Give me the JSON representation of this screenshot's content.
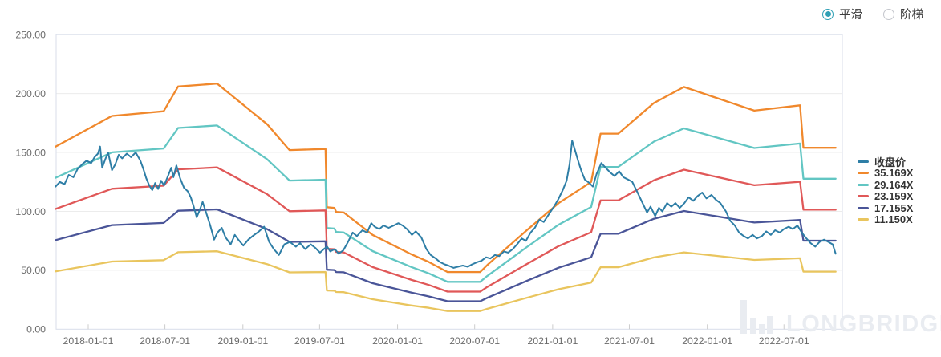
{
  "controls": {
    "accent_color": "#2fa0b5",
    "options": [
      {
        "id": "smooth",
        "label": "平滑",
        "selected": true
      },
      {
        "id": "step",
        "label": "阶梯",
        "selected": false
      }
    ]
  },
  "watermark": {
    "text": "LONGBRIDGE"
  },
  "chart_data": {
    "type": "line",
    "title": "",
    "xlabel": "",
    "ylabel": "",
    "grid": "horizontal",
    "legend_position": "right",
    "y_axis": {
      "min": 0,
      "max": 250,
      "ticks": [
        {
          "value": 0,
          "label": "0.00"
        },
        {
          "value": 50,
          "label": "50.00"
        },
        {
          "value": 100,
          "label": "100.00"
        },
        {
          "value": 150,
          "label": "150.00"
        },
        {
          "value": 200,
          "label": "200.00"
        },
        {
          "value": 250,
          "label": "250.00"
        }
      ]
    },
    "x_axis": {
      "ticks": [
        "2018-01-01",
        "2018-07-01",
        "2019-01-01",
        "2019-07-01",
        "2020-01-01",
        "2020-07-01",
        "2021-01-01",
        "2021-07-01",
        "2022-01-01",
        "2022-07-01"
      ]
    },
    "band_dates": [
      "2017-10-16",
      "2018-02-26",
      "2018-06-28",
      "2018-08-01",
      "2018-11-01",
      "2019-02-27",
      "2019-04-21",
      "2019-07-15",
      "2019-07-18",
      "2019-08-05",
      "2019-08-09",
      "2019-08-27",
      "2019-11-03",
      "2020-02-03",
      "2020-03-15",
      "2020-04-28",
      "2020-07-14",
      "2020-07-31",
      "2020-11-01",
      "2021-01-15",
      "2021-04-02",
      "2021-04-24",
      "2021-06-05",
      "2021-08-28",
      "2021-11-07",
      "2022-04-22",
      "2022-08-08",
      "2022-08-16",
      "2022-10-31"
    ],
    "series": [
      {
        "id": "band-35x",
        "name": "35.169X",
        "color": "#f0882c",
        "width": 2.3,
        "values": [
          155,
          181,
          185,
          206,
          208.5,
          174,
          152,
          153,
          103.5,
          103,
          99.5,
          99,
          80,
          63.5,
          57,
          48.5,
          48.5,
          54.5,
          84,
          107,
          125,
          166,
          166,
          192,
          205.6,
          185.5,
          190,
          154,
          154
        ]
      },
      {
        "id": "band-29x",
        "name": "29.164X",
        "color": "#62c6c3",
        "width": 2.3,
        "values": [
          128.5,
          150.1,
          153.4,
          170.8,
          172.9,
          144.3,
          126.1,
          126.9,
          85.8,
          85.4,
          82.5,
          82.1,
          66.3,
          52.7,
          47.3,
          40.2,
          40.2,
          45.2,
          69.7,
          88.7,
          103.7,
          137.7,
          137.7,
          159.2,
          170.5,
          153.8,
          157.6,
          127.7,
          127.7
        ]
      },
      {
        "id": "band-23x",
        "name": "23.159X",
        "color": "#e05858",
        "width": 2.3,
        "values": [
          102.1,
          119.2,
          121.8,
          135.7,
          137.3,
          114.6,
          100.1,
          100.8,
          68.2,
          67.8,
          65.5,
          65.2,
          52.7,
          41.8,
          37.5,
          31.9,
          31.9,
          35.9,
          55.3,
          70.5,
          82.3,
          109.3,
          109.3,
          126.4,
          135.4,
          122.2,
          125.1,
          101.4,
          101.4
        ]
      },
      {
        "id": "band-17x",
        "name": "17.155X",
        "color": "#4a5598",
        "width": 2.3,
        "values": [
          75.6,
          88.3,
          90.2,
          100.5,
          101.7,
          84.9,
          74.1,
          74.6,
          50.5,
          50.2,
          48.5,
          48.3,
          39,
          31,
          27.8,
          23.7,
          23.7,
          26.6,
          41,
          52.2,
          61,
          81,
          81,
          93.7,
          100.3,
          90.5,
          92.7,
          75.1,
          75.1
        ]
      },
      {
        "id": "band-11x",
        "name": "11.150X",
        "color": "#e9c55e",
        "width": 2.3,
        "values": [
          49.1,
          57.4,
          58.6,
          65.3,
          66.1,
          55.2,
          48.2,
          48.5,
          32.8,
          32.7,
          31.5,
          31.4,
          25.4,
          20.1,
          18.1,
          15.4,
          15.4,
          17.3,
          26.6,
          33.9,
          39.6,
          52.6,
          52.6,
          60.9,
          65.2,
          58.8,
          60.2,
          48.8,
          48.8
        ]
      },
      {
        "id": "close",
        "name": "收盘价",
        "color": "#2e7ea6",
        "width": 2,
        "points": [
          [
            "2017-10-16",
            121
          ],
          [
            "2017-10-26",
            125
          ],
          [
            "2017-11-06",
            123
          ],
          [
            "2017-11-16",
            131
          ],
          [
            "2017-11-27",
            129
          ],
          [
            "2017-12-07",
            136
          ],
          [
            "2017-12-18",
            140
          ],
          [
            "2017-12-28",
            143
          ],
          [
            "2018-01-08",
            141
          ],
          [
            "2018-01-16",
            146
          ],
          [
            "2018-01-24",
            149
          ],
          [
            "2018-01-29",
            155
          ],
          [
            "2018-02-03",
            137
          ],
          [
            "2018-02-10",
            144
          ],
          [
            "2018-02-17",
            150
          ],
          [
            "2018-02-26",
            135
          ],
          [
            "2018-03-06",
            140
          ],
          [
            "2018-03-14",
            148
          ],
          [
            "2018-03-22",
            145
          ],
          [
            "2018-04-02",
            149
          ],
          [
            "2018-04-12",
            146
          ],
          [
            "2018-04-23",
            150
          ],
          [
            "2018-05-04",
            143
          ],
          [
            "2018-05-11",
            136
          ],
          [
            "2018-05-18",
            128
          ],
          [
            "2018-05-25",
            122
          ],
          [
            "2018-06-01",
            118
          ],
          [
            "2018-06-08",
            124
          ],
          [
            "2018-06-15",
            119
          ],
          [
            "2018-06-22",
            126
          ],
          [
            "2018-06-29",
            122
          ],
          [
            "2018-07-06",
            128
          ],
          [
            "2018-07-16",
            137
          ],
          [
            "2018-07-21",
            129
          ],
          [
            "2018-07-28",
            139
          ],
          [
            "2018-08-06",
            128
          ],
          [
            "2018-08-15",
            120
          ],
          [
            "2018-08-24",
            117
          ],
          [
            "2018-08-31",
            112
          ],
          [
            "2018-09-07",
            104
          ],
          [
            "2018-09-14",
            95
          ],
          [
            "2018-09-21",
            101
          ],
          [
            "2018-09-28",
            108
          ],
          [
            "2018-10-08",
            97
          ],
          [
            "2018-10-16",
            88
          ],
          [
            "2018-10-25",
            76
          ],
          [
            "2018-11-02",
            82
          ],
          [
            "2018-11-12",
            86
          ],
          [
            "2018-11-21",
            78
          ],
          [
            "2018-12-03",
            72
          ],
          [
            "2018-12-13",
            80
          ],
          [
            "2018-12-21",
            76
          ],
          [
            "2019-01-02",
            71
          ],
          [
            "2019-01-14",
            76
          ],
          [
            "2019-01-24",
            79
          ],
          [
            "2019-02-08",
            83
          ],
          [
            "2019-02-20",
            87
          ],
          [
            "2019-03-04",
            74
          ],
          [
            "2019-03-15",
            68
          ],
          [
            "2019-03-27",
            63
          ],
          [
            "2019-04-09",
            72
          ],
          [
            "2019-04-22",
            74
          ],
          [
            "2019-05-06",
            70
          ],
          [
            "2019-05-16",
            73
          ],
          [
            "2019-05-28",
            68
          ],
          [
            "2019-06-10",
            72
          ],
          [
            "2019-06-21",
            69
          ],
          [
            "2019-07-02",
            65
          ],
          [
            "2019-07-11",
            68
          ],
          [
            "2019-07-19",
            70
          ],
          [
            "2019-07-26",
            66
          ],
          [
            "2019-08-06",
            68
          ],
          [
            "2019-08-15",
            64
          ],
          [
            "2019-08-26",
            67
          ],
          [
            "2019-09-06",
            74
          ],
          [
            "2019-09-17",
            82
          ],
          [
            "2019-09-27",
            79
          ],
          [
            "2019-10-10",
            84
          ],
          [
            "2019-10-21",
            82
          ],
          [
            "2019-10-31",
            90
          ],
          [
            "2019-11-08",
            87
          ],
          [
            "2019-11-19",
            85
          ],
          [
            "2019-11-29",
            88
          ],
          [
            "2019-12-11",
            86
          ],
          [
            "2019-12-23",
            88
          ],
          [
            "2020-01-03",
            90
          ],
          [
            "2020-01-13",
            88
          ],
          [
            "2020-01-23",
            85
          ],
          [
            "2020-02-04",
            80
          ],
          [
            "2020-02-13",
            83
          ],
          [
            "2020-02-26",
            78
          ],
          [
            "2020-03-09",
            68
          ],
          [
            "2020-03-19",
            63
          ],
          [
            "2020-03-31",
            60
          ],
          [
            "2020-04-10",
            57
          ],
          [
            "2020-04-21",
            55
          ],
          [
            "2020-04-30",
            54
          ],
          [
            "2020-05-12",
            52
          ],
          [
            "2020-05-22",
            53
          ],
          [
            "2020-06-03",
            54
          ],
          [
            "2020-06-15",
            53
          ],
          [
            "2020-06-25",
            55
          ],
          [
            "2020-07-08",
            57
          ],
          [
            "2020-07-17",
            58
          ],
          [
            "2020-07-28",
            61
          ],
          [
            "2020-08-07",
            60
          ],
          [
            "2020-08-18",
            63
          ],
          [
            "2020-08-28",
            62
          ],
          [
            "2020-09-08",
            66
          ],
          [
            "2020-09-18",
            65
          ],
          [
            "2020-09-29",
            68
          ],
          [
            "2020-10-09",
            72
          ],
          [
            "2020-10-20",
            77
          ],
          [
            "2020-10-30",
            75
          ],
          [
            "2020-11-10",
            82
          ],
          [
            "2020-11-20",
            86
          ],
          [
            "2020-12-01",
            93
          ],
          [
            "2020-12-11",
            91
          ],
          [
            "2020-12-22",
            97
          ],
          [
            "2021-01-04",
            104
          ],
          [
            "2021-01-14",
            110
          ],
          [
            "2021-01-25",
            118
          ],
          [
            "2021-02-03",
            126
          ],
          [
            "2021-02-10",
            140
          ],
          [
            "2021-02-16",
            160
          ],
          [
            "2021-02-22",
            153
          ],
          [
            "2021-03-02",
            143
          ],
          [
            "2021-03-10",
            134
          ],
          [
            "2021-03-18",
            127
          ],
          [
            "2021-03-29",
            124
          ],
          [
            "2021-04-06",
            121
          ],
          [
            "2021-04-15",
            132
          ],
          [
            "2021-04-26",
            141
          ],
          [
            "2021-05-06",
            137
          ],
          [
            "2021-05-17",
            133
          ],
          [
            "2021-05-27",
            130
          ],
          [
            "2021-06-07",
            134
          ],
          [
            "2021-06-17",
            129
          ],
          [
            "2021-06-28",
            127
          ],
          [
            "2021-07-08",
            125
          ],
          [
            "2021-07-19",
            117
          ],
          [
            "2021-07-27",
            111
          ],
          [
            "2021-08-04",
            105
          ],
          [
            "2021-08-12",
            99
          ],
          [
            "2021-08-20",
            104
          ],
          [
            "2021-08-31",
            96
          ],
          [
            "2021-09-09",
            103
          ],
          [
            "2021-09-17",
            100
          ],
          [
            "2021-09-28",
            107
          ],
          [
            "2021-10-08",
            104
          ],
          [
            "2021-10-18",
            107
          ],
          [
            "2021-10-28",
            103
          ],
          [
            "2021-11-08",
            107
          ],
          [
            "2021-11-18",
            112
          ],
          [
            "2021-11-29",
            109
          ],
          [
            "2021-12-09",
            113
          ],
          [
            "2021-12-20",
            116
          ],
          [
            "2021-12-30",
            111
          ],
          [
            "2022-01-11",
            114
          ],
          [
            "2022-01-21",
            110
          ],
          [
            "2022-02-01",
            107
          ],
          [
            "2022-02-14",
            100
          ],
          [
            "2022-02-24",
            92
          ],
          [
            "2022-03-07",
            88
          ],
          [
            "2022-03-17",
            82
          ],
          [
            "2022-03-28",
            79
          ],
          [
            "2022-04-07",
            77
          ],
          [
            "2022-04-18",
            80
          ],
          [
            "2022-04-28",
            77
          ],
          [
            "2022-05-10",
            79
          ],
          [
            "2022-05-20",
            83
          ],
          [
            "2022-05-31",
            80
          ],
          [
            "2022-06-10",
            84
          ],
          [
            "2022-06-21",
            82
          ],
          [
            "2022-07-01",
            85
          ],
          [
            "2022-07-12",
            87
          ],
          [
            "2022-07-22",
            85
          ],
          [
            "2022-08-02",
            88
          ],
          [
            "2022-08-12",
            82
          ],
          [
            "2022-08-23",
            77
          ],
          [
            "2022-09-02",
            73
          ],
          [
            "2022-09-13",
            70
          ],
          [
            "2022-09-23",
            74
          ],
          [
            "2022-10-04",
            76
          ],
          [
            "2022-10-14",
            74
          ],
          [
            "2022-10-24",
            72
          ],
          [
            "2022-10-31",
            64
          ]
        ]
      },
      {
        "id": "legend_order",
        "name": "",
        "color": "",
        "width": 0,
        "values": []
      }
    ],
    "legend": [
      "收盘价",
      "35.169X",
      "29.164X",
      "23.159X",
      "17.155X",
      "11.150X"
    ]
  },
  "style": {
    "plot_border_color": "#d8deea",
    "gridline_color": "#ececec",
    "tick_color": "#cccccc",
    "axis_label_color": "#6b6b6b",
    "watermark_color": "#e9ecf1"
  }
}
